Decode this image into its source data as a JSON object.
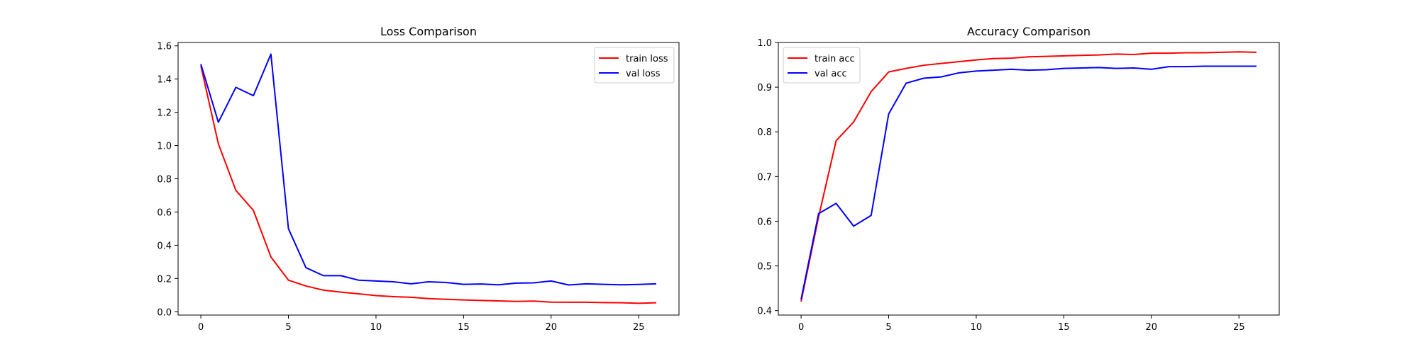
{
  "chart_data": [
    {
      "type": "line",
      "title": "Loss Comparison",
      "xlabel": "",
      "ylabel": "",
      "xlim": [
        -1.3,
        27.3
      ],
      "ylim": [
        -0.02,
        1.62
      ],
      "xticks": [
        0,
        5,
        10,
        15,
        20,
        25
      ],
      "yticks": [
        0.0,
        0.2,
        0.4,
        0.6,
        0.8,
        1.0,
        1.2,
        1.4,
        1.6
      ],
      "ytick_decimals": 1,
      "legend_position": "top-right",
      "grid": false,
      "x": [
        0,
        1,
        2,
        3,
        4,
        5,
        6,
        7,
        8,
        9,
        10,
        11,
        12,
        13,
        14,
        15,
        16,
        17,
        18,
        19,
        20,
        21,
        22,
        23,
        24,
        25,
        26
      ],
      "series": [
        {
          "name": "train loss",
          "color": "#ff0000",
          "values": [
            1.48,
            1.01,
            0.73,
            0.61,
            0.33,
            0.19,
            0.155,
            0.13,
            0.118,
            0.108,
            0.097,
            0.091,
            0.087,
            0.079,
            0.075,
            0.071,
            0.068,
            0.065,
            0.062,
            0.064,
            0.058,
            0.057,
            0.057,
            0.055,
            0.054,
            0.051,
            0.054
          ]
        },
        {
          "name": "val loss",
          "color": "#0000ff",
          "values": [
            1.49,
            1.14,
            1.35,
            1.3,
            1.55,
            0.5,
            0.265,
            0.217,
            0.217,
            0.19,
            0.185,
            0.18,
            0.168,
            0.18,
            0.176,
            0.165,
            0.167,
            0.162,
            0.172,
            0.174,
            0.185,
            0.161,
            0.168,
            0.165,
            0.162,
            0.164,
            0.168
          ]
        }
      ]
    },
    {
      "type": "line",
      "title": "Accuracy Comparison",
      "xlabel": "",
      "ylabel": "",
      "xlim": [
        -1.3,
        27.3
      ],
      "ylim": [
        0.39,
        1.0
      ],
      "xticks": [
        0,
        5,
        10,
        15,
        20,
        25
      ],
      "yticks": [
        0.4,
        0.5,
        0.6,
        0.7,
        0.8,
        0.9,
        1.0
      ],
      "ytick_decimals": 1,
      "legend_position": "top-left",
      "grid": false,
      "x": [
        0,
        1,
        2,
        3,
        4,
        5,
        6,
        7,
        8,
        9,
        10,
        11,
        12,
        13,
        14,
        15,
        16,
        17,
        18,
        19,
        20,
        21,
        22,
        23,
        24,
        25,
        26
      ],
      "series": [
        {
          "name": "train acc",
          "color": "#ff0000",
          "values": [
            0.42,
            0.61,
            0.78,
            0.822,
            0.89,
            0.934,
            0.942,
            0.949,
            0.953,
            0.957,
            0.961,
            0.964,
            0.965,
            0.968,
            0.969,
            0.97,
            0.971,
            0.972,
            0.974,
            0.973,
            0.976,
            0.976,
            0.977,
            0.977,
            0.978,
            0.979,
            0.978
          ]
        },
        {
          "name": "val acc",
          "color": "#0000ff",
          "values": [
            0.425,
            0.617,
            0.64,
            0.589,
            0.613,
            0.84,
            0.909,
            0.92,
            0.923,
            0.932,
            0.936,
            0.938,
            0.94,
            0.938,
            0.939,
            0.942,
            0.943,
            0.944,
            0.942,
            0.943,
            0.94,
            0.946,
            0.946,
            0.947,
            0.947,
            0.947,
            0.947
          ]
        }
      ]
    }
  ]
}
